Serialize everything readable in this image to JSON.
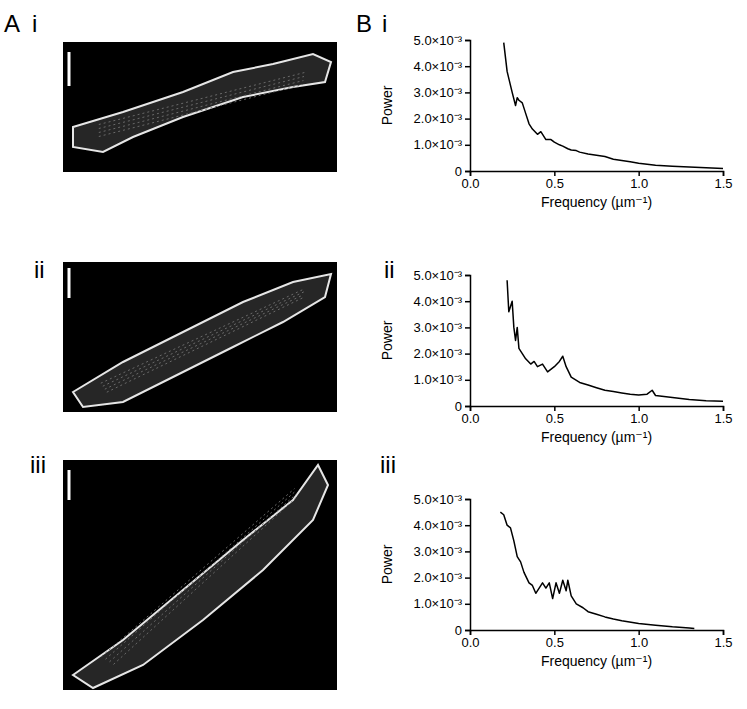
{
  "figure": {
    "panels": [
      {
        "letter": "A",
        "rows": [
          "i",
          "ii",
          "iii"
        ]
      },
      {
        "letter": "B",
        "rows": [
          "i",
          "ii",
          "iii"
        ]
      }
    ]
  },
  "chart_data": [
    {
      "type": "line",
      "x_label": "Frequency (µm⁻¹)",
      "y_label": "Power",
      "color": "#000000",
      "xlim": [
        0,
        1.5
      ],
      "ylim": [
        0,
        0.005
      ],
      "xticks": [
        {
          "value": 0,
          "label": "0.0"
        },
        0.5,
        {
          "value": 1,
          "label": "1.0"
        },
        1.5
      ],
      "yticks": [
        0,
        {
          "value": 0.001,
          "label": "1.0×10⁻³"
        },
        {
          "value": 0.002,
          "label": "2.0×10⁻³"
        },
        {
          "value": 0.003,
          "label": "3.0×10⁻³"
        },
        {
          "value": 0.004,
          "label": "4.0×10⁻³"
        },
        {
          "value": 0.005,
          "label": "5.0×10⁻³"
        }
      ],
      "x": [
        0.2,
        0.22,
        0.25,
        0.27,
        0.28,
        0.29,
        0.31,
        0.33,
        0.35,
        0.37,
        0.4,
        0.42,
        0.45,
        0.48,
        0.5,
        0.53,
        0.55,
        0.58,
        0.6,
        0.63,
        0.65,
        0.7,
        0.75,
        0.8,
        0.85,
        0.9,
        0.95,
        1.0,
        1.1,
        1.2,
        1.3,
        1.4,
        1.5
      ],
      "values": [
        0.0049,
        0.0038,
        0.003,
        0.0025,
        0.0028,
        0.0027,
        0.0026,
        0.0022,
        0.0018,
        0.0016,
        0.0014,
        0.0015,
        0.0012,
        0.0012,
        0.0011,
        0.001,
        0.00095,
        0.00085,
        0.0008,
        0.00078,
        0.00072,
        0.00065,
        0.0006,
        0.00055,
        0.00045,
        0.0004,
        0.00035,
        0.0003,
        0.00022,
        0.00018,
        0.00015,
        0.00012,
        0.0001
      ]
    },
    {
      "type": "line",
      "x_label": "Frequency (µm⁻¹)",
      "y_label": "Power",
      "color": "#000000",
      "xlim": [
        0,
        1.5
      ],
      "ylim": [
        0,
        0.005
      ],
      "xticks": [
        {
          "value": 0,
          "label": "0.0"
        },
        0.5,
        {
          "value": 1,
          "label": "1.0"
        },
        1.5
      ],
      "yticks": [
        0,
        {
          "value": 0.001,
          "label": "1.0×10⁻³"
        },
        {
          "value": 0.002,
          "label": "2.0×10⁻³"
        },
        {
          "value": 0.003,
          "label": "3.0×10⁻³"
        },
        {
          "value": 0.004,
          "label": "4.0×10⁻³"
        },
        {
          "value": 0.005,
          "label": "5.0×10⁻³"
        }
      ],
      "x": [
        0.22,
        0.23,
        0.25,
        0.26,
        0.27,
        0.28,
        0.29,
        0.31,
        0.33,
        0.36,
        0.38,
        0.4,
        0.43,
        0.46,
        0.5,
        0.53,
        0.55,
        0.57,
        0.6,
        0.65,
        0.7,
        0.75,
        0.8,
        0.85,
        0.9,
        0.95,
        1.0,
        1.05,
        1.08,
        1.1,
        1.2,
        1.3,
        1.4,
        1.5
      ],
      "values": [
        0.0048,
        0.0036,
        0.004,
        0.003,
        0.0025,
        0.003,
        0.0022,
        0.002,
        0.0018,
        0.0016,
        0.0017,
        0.0015,
        0.0016,
        0.0013,
        0.0015,
        0.0017,
        0.0019,
        0.0015,
        0.0011,
        0.0009,
        0.0008,
        0.0007,
        0.0006,
        0.00055,
        0.0005,
        0.00045,
        0.00042,
        0.00045,
        0.0006,
        0.0004,
        0.00032,
        0.00025,
        0.0002,
        0.00018
      ]
    },
    {
      "type": "line",
      "x_label": "Frequency (µm⁻¹)",
      "y_label": "Power",
      "color": "#000000",
      "xlim": [
        0,
        1.5
      ],
      "ylim": [
        0,
        0.005
      ],
      "xticks": [
        {
          "value": 0,
          "label": "0.0"
        },
        0.5,
        {
          "value": 1,
          "label": "1.0"
        },
        1.5
      ],
      "yticks": [
        0,
        {
          "value": 0.001,
          "label": "1.0×10⁻³"
        },
        {
          "value": 0.002,
          "label": "2.0×10⁻³"
        },
        {
          "value": 0.003,
          "label": "3.0×10⁻³"
        },
        {
          "value": 0.004,
          "label": "4.0×10⁻³"
        },
        {
          "value": 0.005,
          "label": "5.0×10⁻³"
        }
      ],
      "x": [
        0.18,
        0.2,
        0.22,
        0.24,
        0.26,
        0.28,
        0.3,
        0.32,
        0.35,
        0.37,
        0.39,
        0.41,
        0.43,
        0.45,
        0.47,
        0.49,
        0.51,
        0.53,
        0.55,
        0.57,
        0.58,
        0.6,
        0.63,
        0.67,
        0.7,
        0.75,
        0.8,
        0.85,
        0.9,
        1.0,
        1.1,
        1.2,
        1.3,
        1.33
      ],
      "values": [
        0.0045,
        0.0044,
        0.004,
        0.0039,
        0.0034,
        0.0028,
        0.0026,
        0.0022,
        0.0018,
        0.0017,
        0.0014,
        0.0016,
        0.0018,
        0.0016,
        0.0018,
        0.0012,
        0.0018,
        0.0014,
        0.0019,
        0.0015,
        0.0019,
        0.0013,
        0.001,
        0.00085,
        0.0007,
        0.0006,
        0.0005,
        0.00042,
        0.00035,
        0.00025,
        0.00018,
        0.00012,
        8e-05,
        6e-05
      ]
    }
  ]
}
